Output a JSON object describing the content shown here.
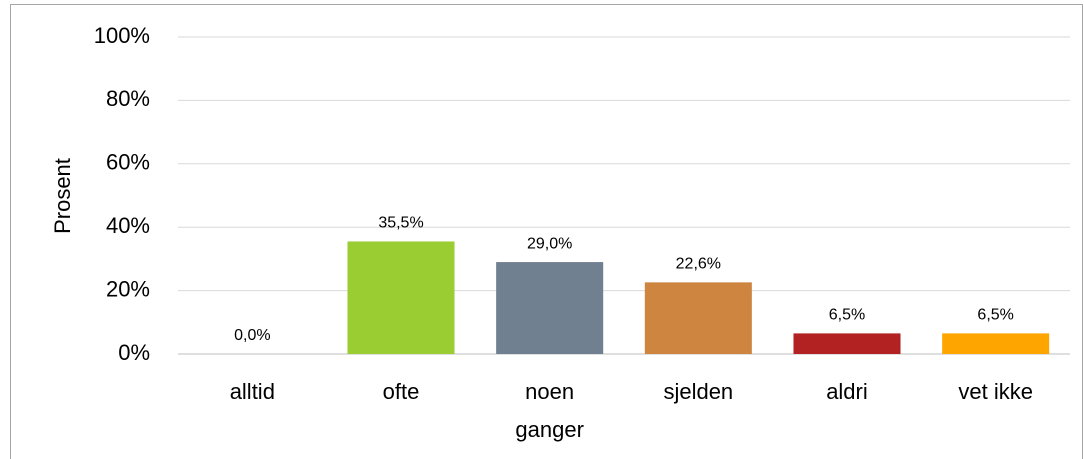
{
  "chart_data": {
    "type": "bar",
    "y_label": "Prosent",
    "categories": [
      "alltid",
      "ofte",
      "noen ganger",
      "sjelden",
      "aldri",
      "vet ikke"
    ],
    "values": [
      0,
      35.5,
      29.0,
      22.6,
      6.5,
      6.5
    ],
    "value_labels": [
      "0,0%",
      "35,5%",
      "29,0%",
      "22,6%",
      "6,5%",
      "6,5%"
    ],
    "colors": [
      "#9acd32",
      "#9acd32",
      "#708090",
      "#cd853f",
      "#b22222",
      "#ffa500"
    ],
    "ylim": [
      0,
      100
    ],
    "yticks": [
      {
        "value": 0,
        "label": "0%"
      },
      {
        "value": 20,
        "label": "20%"
      },
      {
        "value": 40,
        "label": "40%"
      },
      {
        "value": 60,
        "label": "60%"
      },
      {
        "value": 80,
        "label": "80%"
      },
      {
        "value": 100,
        "label": "100%"
      }
    ],
    "grid": true
  }
}
